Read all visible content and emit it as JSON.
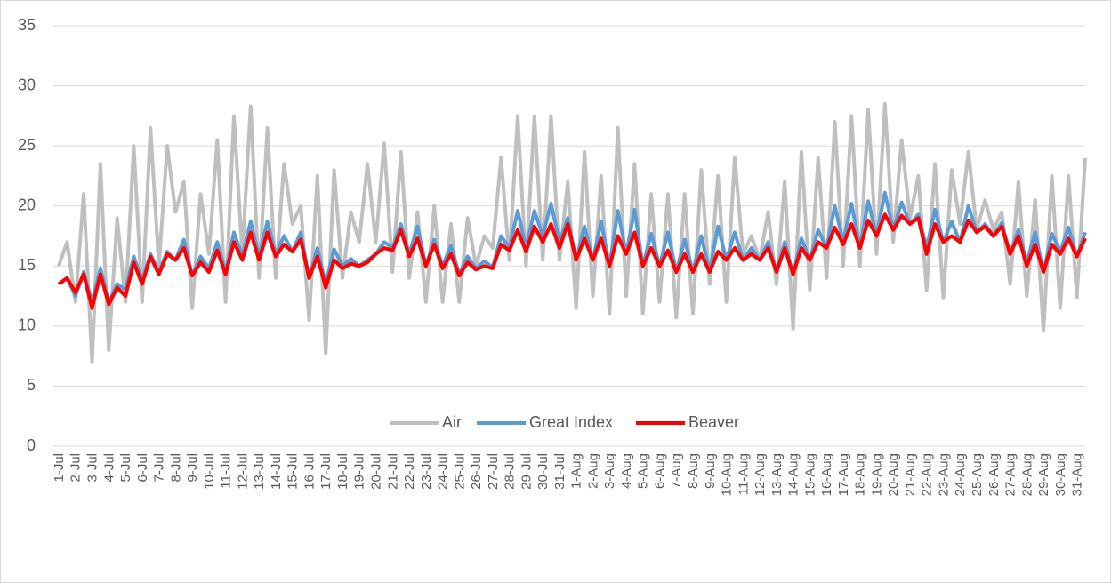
{
  "chart_data": {
    "type": "line",
    "categories": [
      "1-Jul",
      null,
      "2-Jul",
      null,
      "3-Jul",
      null,
      "4-Jul",
      null,
      "5-Jul",
      null,
      "6-Jul",
      null,
      "7-Jul",
      null,
      "8-Jul",
      null,
      "9-Jul",
      null,
      "10-Jul",
      null,
      "11-Jul",
      null,
      "12-Jul",
      null,
      "13-Jul",
      null,
      "14-Jul",
      null,
      "15-Jul",
      null,
      "16-Jul",
      null,
      "17-Jul",
      null,
      "18-Jul",
      null,
      "19-Jul",
      null,
      "20-Jul",
      null,
      "21-Jul",
      null,
      "22-Jul",
      null,
      "23-Jul",
      null,
      "24-Jul",
      null,
      "25-Jul",
      null,
      "26-Jul",
      null,
      "27-Jul",
      null,
      "28-Jul",
      null,
      "29-Jul",
      null,
      "30-Jul",
      null,
      "31-Jul",
      null,
      "1-Aug",
      null,
      "2-Aug",
      null,
      "3-Aug",
      null,
      "4-Aug",
      null,
      "5-Aug",
      null,
      "6-Aug",
      null,
      "7-Aug",
      null,
      "8-Aug",
      null,
      "9-Aug",
      null,
      "10-Aug",
      null,
      "11-Aug",
      null,
      "12-Aug",
      null,
      "13-Aug",
      null,
      "14-Aug",
      null,
      "15-Aug",
      null,
      "16-Aug",
      null,
      "17-Aug",
      null,
      "18-Aug",
      null,
      "19-Aug",
      null,
      "20-Aug",
      null,
      "21-Aug",
      null,
      "22-Aug",
      null,
      "23-Aug",
      null,
      "24-Aug",
      null,
      "25-Aug",
      null,
      "26-Aug",
      null,
      "27-Aug",
      null,
      "28-Aug",
      null,
      "29-Aug",
      null,
      "30-Aug",
      null,
      "31-Aug",
      null
    ],
    "series": [
      {
        "name": "Air",
        "color": "#bfbfbf",
        "values": [
          15,
          17,
          12,
          21,
          7,
          23.5,
          8,
          19,
          12,
          25,
          12,
          26.5,
          15,
          25,
          19.5,
          22,
          11.5,
          21,
          16,
          25.5,
          12,
          27.5,
          16,
          28.3,
          14,
          26.5,
          14,
          23.5,
          18.5,
          20,
          10.5,
          22.5,
          7.7,
          23,
          14,
          19.5,
          17,
          23.5,
          17,
          25.2,
          14.5,
          24.5,
          14,
          19.5,
          12,
          20,
          12,
          18.5,
          12,
          19,
          15,
          17.5,
          16.5,
          24,
          15.5,
          27.5,
          15,
          27.5,
          15.5,
          27.5,
          15.5,
          22,
          11.5,
          24.5,
          12.5,
          22.5,
          11,
          26.5,
          12.5,
          23.5,
          11,
          21,
          12,
          21,
          10.7,
          21,
          11,
          23,
          13.5,
          22.5,
          12,
          24,
          16,
          17.5,
          15.5,
          19.5,
          13.5,
          22,
          9.8,
          24.5,
          13,
          24,
          14,
          27,
          15,
          27.5,
          15,
          28,
          16,
          28.5,
          17,
          25.5,
          19,
          22.5,
          13,
          23.5,
          12.3,
          23,
          18.5,
          24.5,
          18,
          20.5,
          18,
          19.5,
          13.5,
          22,
          12.5,
          20.5,
          9.6,
          22.5,
          11.5,
          22.5,
          12.4,
          24
        ]
      },
      {
        "name": "Great Index",
        "color": "#5b9bd5",
        "values": [
          13.5,
          14,
          12.5,
          14.5,
          12,
          14.8,
          12,
          13.5,
          13,
          15.8,
          13.8,
          16,
          14.5,
          16.2,
          15.5,
          17.2,
          14.2,
          15.8,
          14.8,
          17,
          14.5,
          17.8,
          15.8,
          18.7,
          15.8,
          18.7,
          16,
          17.5,
          16.2,
          17.8,
          14,
          16.5,
          13.5,
          16.4,
          15,
          15.6,
          15,
          15.5,
          16,
          17,
          16.5,
          18.5,
          16,
          18.3,
          15,
          17.2,
          15,
          16.7,
          14.3,
          15.8,
          14.8,
          15.4,
          14.9,
          17.5,
          16.5,
          19.6,
          16.5,
          19.6,
          17.5,
          20.2,
          17,
          19,
          15.5,
          18.3,
          15.5,
          18.7,
          15,
          19.6,
          16,
          19.7,
          15,
          17.7,
          15,
          17.8,
          14.5,
          17.2,
          14.5,
          17.5,
          14.5,
          18.3,
          15.5,
          17.8,
          15.5,
          16.5,
          15.5,
          17,
          14.5,
          17,
          14.3,
          17.3,
          15.5,
          18,
          16.5,
          20,
          17,
          20.2,
          16.5,
          20.4,
          17.5,
          21.1,
          18,
          20.3,
          18.5,
          19.3,
          16.5,
          19.7,
          17,
          18.7,
          17,
          20,
          17.8,
          18.5,
          17.5,
          18.6,
          16,
          18,
          15.3,
          17.8,
          14.5,
          17.7,
          16.2,
          18.2,
          15.8,
          17.8
        ]
      },
      {
        "name": "Beaver",
        "color": "#ff0000",
        "values": [
          13.5,
          14,
          12.8,
          14.3,
          11.5,
          14.3,
          11.8,
          13.2,
          12.5,
          15.3,
          13.5,
          15.8,
          14.3,
          16,
          15.5,
          16.5,
          14.2,
          15.3,
          14.5,
          16.3,
          14.3,
          17,
          15.5,
          17.8,
          15.5,
          17.8,
          15.8,
          16.8,
          16.2,
          17.2,
          14,
          15.8,
          13.2,
          15.5,
          14.8,
          15.2,
          15,
          15.3,
          16,
          16.5,
          16.3,
          18,
          15.8,
          17.3,
          15,
          16.8,
          14.8,
          16,
          14.2,
          15.3,
          14.7,
          15,
          14.8,
          16.8,
          16.3,
          18,
          16.2,
          18.3,
          17,
          18.5,
          16.5,
          18.5,
          15.5,
          17.3,
          15.5,
          17.3,
          15,
          17.5,
          16,
          17.8,
          15,
          16.5,
          15,
          16.3,
          14.5,
          16,
          14.5,
          16,
          14.5,
          16.2,
          15.5,
          16.5,
          15.5,
          16,
          15.5,
          16.5,
          14.5,
          16.5,
          14.3,
          16.5,
          15.5,
          17,
          16.5,
          18.2,
          16.8,
          18.5,
          16.5,
          18.8,
          17.5,
          19.3,
          18,
          19.2,
          18.5,
          19,
          16,
          18.5,
          17,
          17.5,
          17,
          18.8,
          17.8,
          18.3,
          17.5,
          18.3,
          16,
          17.5,
          15,
          16.8,
          14.5,
          16.8,
          16,
          17.3,
          15.8,
          17.3
        ]
      }
    ],
    "ylim": [
      0,
      35
    ],
    "yticks": [
      0,
      5,
      10,
      15,
      20,
      25,
      30,
      35
    ],
    "grid": true,
    "legend": "bottom"
  }
}
